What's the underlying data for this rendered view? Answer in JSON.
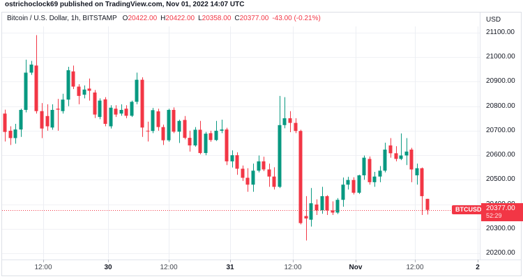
{
  "attribution": {
    "text": "ostrichoclock69 published on TradingView.com, Nov 01, 2022 14:07 UTC"
  },
  "header": {
    "symbol": "Bitcoin / U.S. Dollar, 1h, BITSTAMP",
    "o_label": "O",
    "o": "20422.00",
    "h_label": "H",
    "h": "20422.00",
    "l_label": "L",
    "l": "20358.00",
    "c_label": "C",
    "c": "20377.00",
    "change": "-43.00 (-0.21%)"
  },
  "price_scale": {
    "unit": "USD",
    "labels": [
      "21100.00",
      "21000.00",
      "20900.00",
      "20800.00",
      "20700.00",
      "20600.00",
      "20500.00",
      "20400.00",
      "20300.00",
      "20200.00"
    ]
  },
  "time_scale": {
    "labels": [
      {
        "text": "12:00",
        "x": 62,
        "major": false
      },
      {
        "text": "30",
        "x": 155,
        "major": true
      },
      {
        "text": "12:00",
        "x": 242,
        "major": false
      },
      {
        "text": "31",
        "x": 330,
        "major": true
      },
      {
        "text": "12:00",
        "x": 420,
        "major": false
      },
      {
        "text": "Nov",
        "x": 510,
        "major": true
      },
      {
        "text": "12:00",
        "x": 595,
        "major": false
      },
      {
        "text": "2",
        "x": 685,
        "major": true
      }
    ]
  },
  "last_price": {
    "symbol_badge": "BTCUSD",
    "price": "20377.00",
    "countdown": "52:29",
    "price_value": 20377
  },
  "colors": {
    "up": "#089981",
    "down": "#f23645",
    "grid_h": "#f0f1f5",
    "grid_v": "#eceef3",
    "accent_red": "#f23645",
    "text_dark": "#131722"
  },
  "chart_data": {
    "type": "candlestick",
    "title": "Bitcoin / U.S. Dollar, 1h, BITSTAMP",
    "exchange": "BITSTAMP",
    "interval": "1h",
    "ylabel": "USD",
    "ylim": [
      20200,
      21100
    ],
    "grid_step": 100,
    "x_tick_labels": [
      "12:00",
      "30",
      "12:00",
      "31",
      "12:00",
      "Nov",
      "12:00",
      "2"
    ],
    "legend_position": "none",
    "grid": true,
    "candles_ohlc": [
      [
        20770,
        20786,
        20656,
        20695
      ],
      [
        20700,
        20718,
        20642,
        20670
      ],
      [
        20670,
        20728,
        20647,
        20705
      ],
      [
        20705,
        20790,
        20675,
        20785
      ],
      [
        20785,
        20990,
        20775,
        20937
      ],
      [
        20937,
        20985,
        20928,
        20970
      ],
      [
        20966,
        21090,
        20770,
        20780
      ],
      [
        20780,
        20813,
        20670,
        20709
      ],
      [
        20760,
        20808,
        20700,
        20718
      ],
      [
        20713,
        20808,
        20704,
        20785
      ],
      [
        20790,
        20830,
        20700,
        20786
      ],
      [
        20780,
        20851,
        20770,
        20827
      ],
      [
        20827,
        20961,
        20800,
        20947
      ],
      [
        20942,
        20966,
        20870,
        20880
      ],
      [
        20880,
        20890,
        20808,
        20842
      ],
      [
        20847,
        20885,
        20832,
        20868
      ],
      [
        20872,
        20913,
        20823,
        20863
      ],
      [
        20856,
        20866,
        20752,
        20766
      ],
      [
        20756,
        20832,
        20747,
        20823
      ],
      [
        20828,
        20837,
        20718,
        20728
      ],
      [
        20718,
        20804,
        20709,
        20794
      ],
      [
        20790,
        20804,
        20756,
        20766
      ],
      [
        20770,
        20808,
        20761,
        20785
      ],
      [
        20790,
        20804,
        20751,
        20761
      ],
      [
        20761,
        20823,
        20756,
        20818
      ],
      [
        20818,
        20937,
        20808,
        20908
      ],
      [
        20908,
        20918,
        20675,
        20713
      ],
      [
        20700,
        20737,
        20656,
        20699
      ],
      [
        20699,
        20793,
        20690,
        20784
      ],
      [
        20779,
        20790,
        20700,
        20715
      ],
      [
        20715,
        20725,
        20642,
        20661
      ],
      [
        20661,
        20790,
        20655,
        20785
      ],
      [
        20785,
        20795,
        20690,
        20696
      ],
      [
        20696,
        20745,
        20650,
        20740
      ],
      [
        20744,
        20760,
        20665,
        20671
      ],
      [
        20671,
        20700,
        20615,
        20640
      ],
      [
        20640,
        20715,
        20635,
        20704
      ],
      [
        20704,
        20740,
        20604,
        20609
      ],
      [
        20609,
        20695,
        20600,
        20688
      ],
      [
        20690,
        20700,
        20655,
        20662
      ],
      [
        20662,
        20740,
        20658,
        20700
      ],
      [
        20700,
        20745,
        20690,
        20705
      ],
      [
        20705,
        20712,
        20560,
        20575
      ],
      [
        20575,
        20620,
        20550,
        20600
      ],
      [
        20600,
        20612,
        20520,
        20545
      ],
      [
        20545,
        20558,
        20495,
        20508
      ],
      [
        20508,
        20547,
        20451,
        20480
      ],
      [
        20480,
        20566,
        20451,
        20537
      ],
      [
        20537,
        20599,
        20530,
        20575
      ],
      [
        20575,
        20594,
        20535,
        20542
      ],
      [
        20542,
        20566,
        20471,
        20513
      ],
      [
        20513,
        20551,
        20460,
        20471
      ],
      [
        20471,
        20842,
        20466,
        20723
      ],
      [
        20723,
        20837,
        20710,
        20751
      ],
      [
        20751,
        20780,
        20694,
        20732
      ],
      [
        20732,
        20751,
        20690,
        20699
      ],
      [
        20699,
        20704,
        20318,
        20323
      ],
      [
        20352,
        20433,
        20252,
        20342
      ],
      [
        20337,
        20466,
        20309,
        20404
      ],
      [
        20399,
        20420,
        20356,
        20375
      ],
      [
        20375,
        20471,
        20361,
        20433
      ],
      [
        20433,
        20437,
        20356,
        20375
      ],
      [
        20375,
        20412,
        20356,
        20366
      ],
      [
        20366,
        20425,
        20360,
        20418
      ],
      [
        20418,
        20509,
        20390,
        20480
      ],
      [
        20480,
        20512,
        20460,
        20499
      ],
      [
        20499,
        20510,
        20440,
        20447
      ],
      [
        20447,
        20520,
        20442,
        20518
      ],
      [
        20518,
        20599,
        20500,
        20590
      ],
      [
        20585,
        20595,
        20480,
        20490
      ],
      [
        20490,
        20532,
        20471,
        20513
      ],
      [
        20513,
        20556,
        20490,
        20537
      ],
      [
        20537,
        20651,
        20530,
        20623
      ],
      [
        20640,
        20670,
        20590,
        20608
      ],
      [
        20608,
        20637,
        20575,
        20585
      ],
      [
        20585,
        20689,
        20580,
        20599
      ],
      [
        20599,
        20670,
        20560,
        20615
      ],
      [
        20623,
        20630,
        20490,
        20542
      ],
      [
        20518,
        20566,
        20480,
        20547
      ],
      [
        20547,
        20550,
        20356,
        20433
      ],
      [
        20422,
        20422,
        20358,
        20377
      ]
    ]
  }
}
